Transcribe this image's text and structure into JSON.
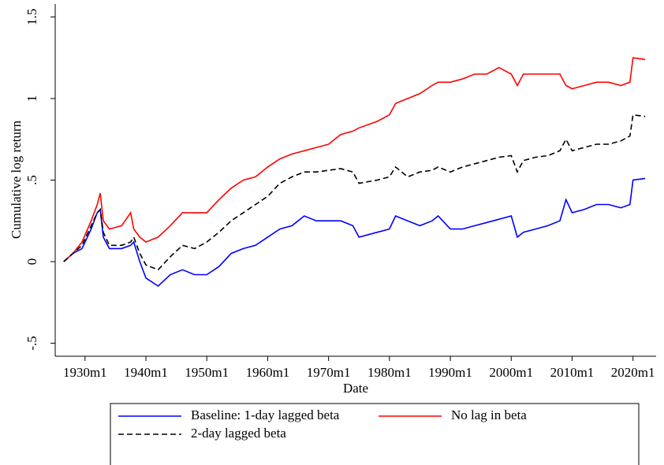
{
  "chart_data": {
    "type": "line",
    "x_label": "Date",
    "y_label": "Cumulative log return",
    "x": [
      1926.5,
      1928,
      1929.5,
      1931,
      1932,
      1932.5,
      1933,
      1934,
      1936,
      1937.5,
      1938,
      1939,
      1940,
      1942,
      1944,
      1946,
      1948,
      1950,
      1952,
      1954,
      1956,
      1958,
      1960,
      1962,
      1964,
      1966,
      1968,
      1970,
      1972,
      1974,
      1975,
      1978,
      1980,
      1981,
      1983,
      1985,
      1987,
      1988,
      1990,
      1992,
      1994,
      1996,
      1998,
      2000,
      2001,
      2002,
      2004,
      2006,
      2008,
      2009,
      2010,
      2012,
      2014,
      2016,
      2018,
      2019.5,
      2020,
      2022
    ],
    "series": [
      {
        "name": "Baseline: 1-day lagged beta",
        "color": "#0000ff",
        "line_style": "solid",
        "values": [
          0,
          0.05,
          0.08,
          0.2,
          0.3,
          0.32,
          0.15,
          0.08,
          0.08,
          0.1,
          0.12,
          0,
          -0.1,
          -0.15,
          -0.08,
          -0.05,
          -0.08,
          -0.08,
          -0.03,
          0.05,
          0.08,
          0.1,
          0.15,
          0.2,
          0.22,
          0.28,
          0.25,
          0.25,
          0.25,
          0.22,
          0.15,
          0.18,
          0.2,
          0.28,
          0.25,
          0.22,
          0.25,
          0.28,
          0.2,
          0.2,
          0.22,
          0.24,
          0.26,
          0.28,
          0.15,
          0.18,
          0.2,
          0.22,
          0.25,
          0.38,
          0.3,
          0.32,
          0.35,
          0.35,
          0.33,
          0.35,
          0.5,
          0.51
        ]
      },
      {
        "name": "No lag in beta",
        "color": "#ff0000",
        "line_style": "solid",
        "values": [
          0,
          0.05,
          0.12,
          0.25,
          0.35,
          0.42,
          0.25,
          0.2,
          0.22,
          0.3,
          0.2,
          0.15,
          0.12,
          0.15,
          0.22,
          0.3,
          0.3,
          0.3,
          0.38,
          0.45,
          0.5,
          0.52,
          0.58,
          0.63,
          0.66,
          0.68,
          0.7,
          0.72,
          0.78,
          0.8,
          0.82,
          0.86,
          0.9,
          0.97,
          1.0,
          1.03,
          1.08,
          1.1,
          1.1,
          1.12,
          1.15,
          1.15,
          1.19,
          1.15,
          1.08,
          1.15,
          1.15,
          1.15,
          1.15,
          1.08,
          1.06,
          1.08,
          1.1,
          1.1,
          1.08,
          1.1,
          1.25,
          1.24
        ]
      },
      {
        "name": "2-day lagged beta",
        "color": "#000000",
        "line_style": "dashed",
        "values": [
          0,
          0.05,
          0.1,
          0.22,
          0.3,
          0.32,
          0.18,
          0.1,
          0.1,
          0.12,
          0.15,
          0.05,
          -0.02,
          -0.05,
          0.03,
          0.1,
          0.08,
          0.12,
          0.18,
          0.25,
          0.3,
          0.35,
          0.4,
          0.48,
          0.52,
          0.55,
          0.55,
          0.56,
          0.57,
          0.55,
          0.48,
          0.5,
          0.52,
          0.58,
          0.52,
          0.55,
          0.56,
          0.58,
          0.55,
          0.58,
          0.6,
          0.62,
          0.64,
          0.65,
          0.55,
          0.62,
          0.64,
          0.65,
          0.68,
          0.75,
          0.68,
          0.7,
          0.72,
          0.72,
          0.74,
          0.77,
          0.9,
          0.89
        ]
      }
    ],
    "xlim": [
      1925.1,
      2023.8
    ],
    "xticks": [
      {
        "value": 1930,
        "label": "1930m1"
      },
      {
        "value": 1940,
        "label": "1940m1"
      },
      {
        "value": 1950,
        "label": "1950m1"
      },
      {
        "value": 1960,
        "label": "1960m1"
      },
      {
        "value": 1970,
        "label": "1970m1"
      },
      {
        "value": 1980,
        "label": "1980m1"
      },
      {
        "value": 1990,
        "label": "1990m1"
      },
      {
        "value": 2000,
        "label": "2000m1"
      },
      {
        "value": 2010,
        "label": "2010m1"
      },
      {
        "value": 2020,
        "label": "2020m1"
      }
    ],
    "ylim": [
      -0.58,
      1.58
    ],
    "yticks": [
      {
        "value": -0.5,
        "label": "-.5"
      },
      0,
      {
        "value": 0.5,
        "label": ".5"
      },
      1,
      1.5
    ],
    "legend": "bottom"
  }
}
